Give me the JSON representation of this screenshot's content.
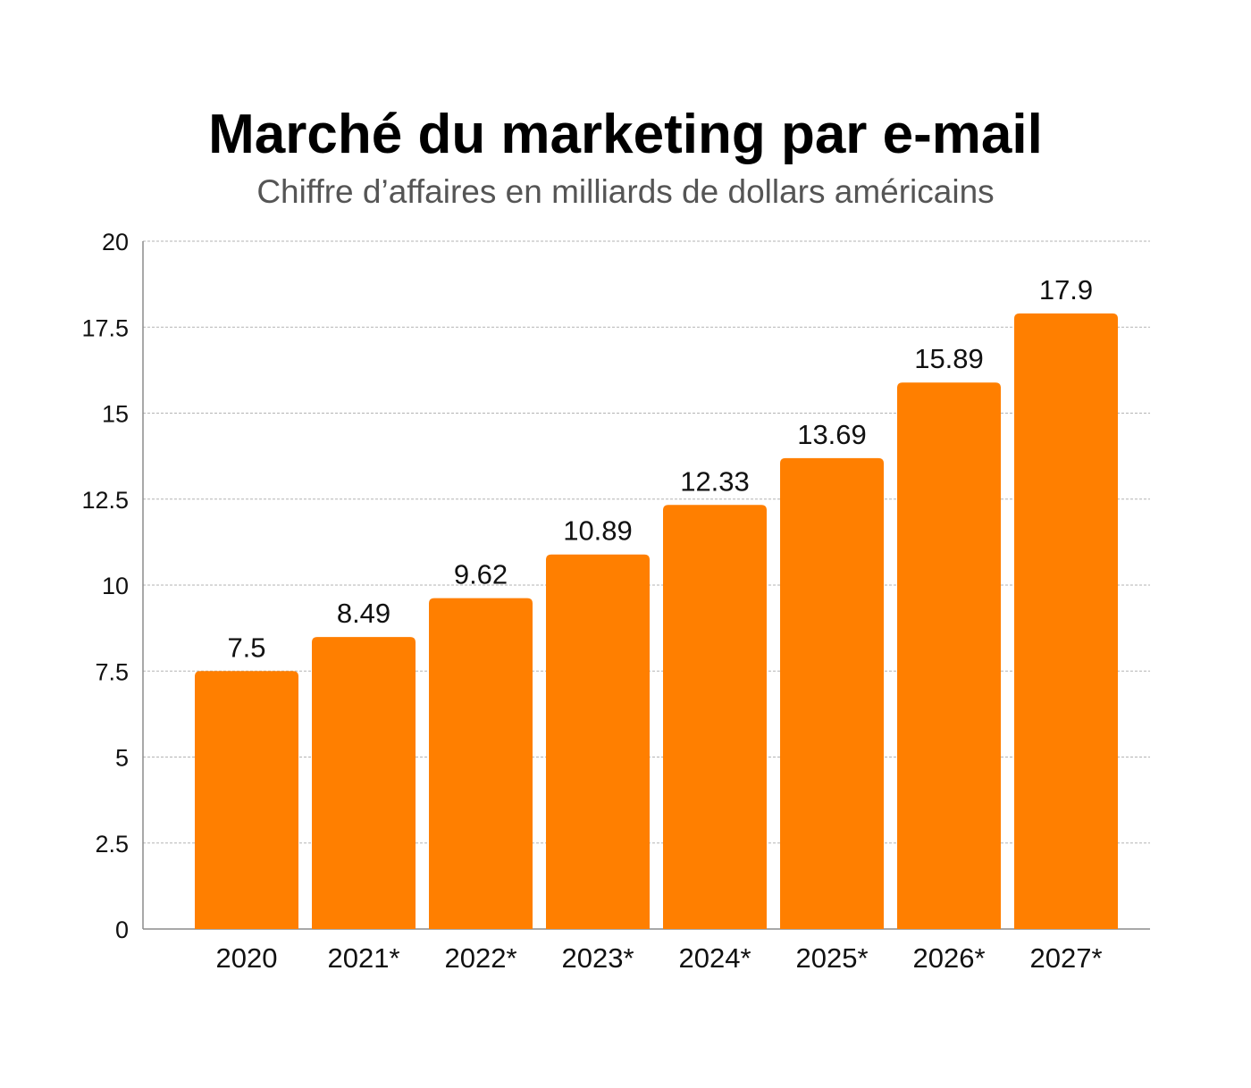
{
  "chart_data": {
    "type": "bar",
    "title": "Marché du marketing par e-mail",
    "subtitle": "Chiffre d’affaires en milliards de dollars américains",
    "categories": [
      "2020",
      "2021*",
      "2022*",
      "2023*",
      "2024*",
      "2025*",
      "2026*",
      "2027*"
    ],
    "values": [
      7.5,
      8.49,
      9.62,
      10.89,
      12.33,
      13.69,
      15.89,
      17.9
    ],
    "value_labels": [
      "7.5",
      "8.49",
      "9.62",
      "10.89",
      "12.33",
      "13.69",
      "15.89",
      "17.9"
    ],
    "yticks": [
      0,
      2.5,
      5,
      7.5,
      10,
      12.5,
      15,
      17.5,
      20
    ],
    "ytick_labels": [
      "0",
      "2.5",
      "5",
      "7.5",
      "10",
      "12.5",
      "15",
      "17.5",
      "20"
    ],
    "ylim": [
      0,
      20
    ],
    "xlabel": "",
    "ylabel": "",
    "grid": true,
    "legend": false,
    "colors": {
      "bar": "#FF7F00",
      "grid": "#b3b3b3",
      "axis": "#8c8c8c",
      "subtitle": "#555555"
    }
  }
}
